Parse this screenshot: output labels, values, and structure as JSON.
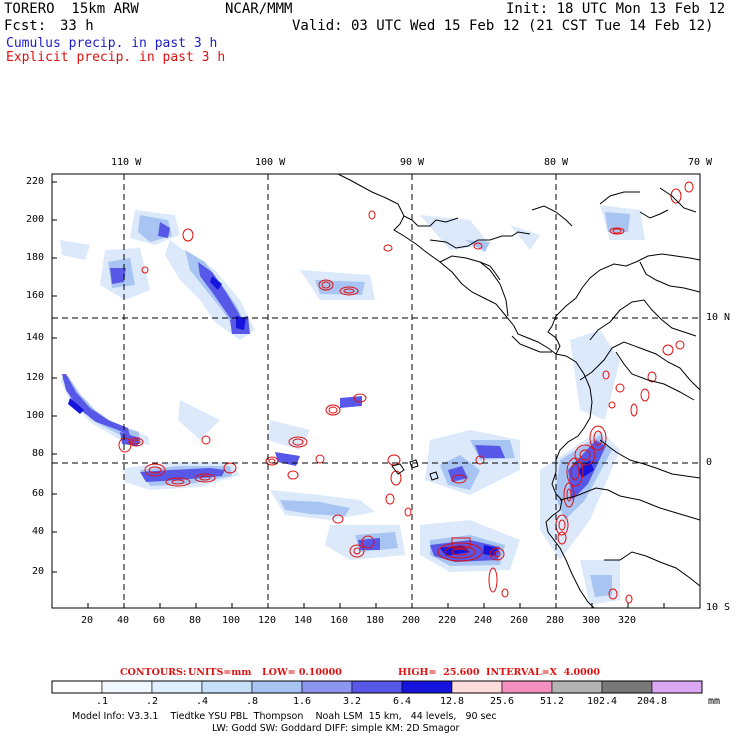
{
  "header": {
    "model": "TORERO  15km ARW",
    "org": "NCAR/MMM",
    "init": "Init: 18 UTC Mon 13 Feb 12",
    "fcst_label": "Fcst:",
    "fcst_value": "33 h",
    "valid": "Valid: 03 UTC Wed 15 Feb 12 (21 CST Tue 14 Feb 12)",
    "line_cumulus": "Cumulus precip. in past 3 h",
    "line_explicit": "Explicit precip. in past 3 h"
  },
  "colors": {
    "cumulus_text": "#1d1dc8",
    "explicit_text": "#e01010",
    "contour": "#e01010",
    "coast": "#000000"
  },
  "map": {
    "lon_labels": [
      "110 W",
      "100 W",
      "90 W",
      "80 W",
      "70 W"
    ],
    "lat_labels": [
      "10 N",
      "0",
      "10 S"
    ],
    "y_ticks": [
      "220",
      "200",
      "180",
      "160",
      "140",
      "120",
      "100",
      "80",
      "60",
      "40",
      "20"
    ],
    "x_ticks": [
      "20",
      "40",
      "60",
      "80",
      "100",
      "120",
      "140",
      "160",
      "180",
      "200",
      "220",
      "240",
      "260",
      "280",
      "300",
      "320"
    ]
  },
  "contours": {
    "label": "CONTOURS:",
    "units": "UNITS=mm",
    "low": "LOW= 0.10000",
    "high": "HIGH=  25.600",
    "interval": "INTERVAL=X  4.0000"
  },
  "colorbar": {
    "labels": [
      ".1",
      ".2",
      ".4",
      ".8",
      "1.6",
      "3.2",
      "6.4",
      "12.8",
      "25.6",
      "51.2",
      "102.4",
      "204.8"
    ],
    "unit": "mm",
    "colors": [
      "#ffffff",
      "#f0f7ff",
      "#e0efff",
      "#c6e0fa",
      "#a8c4f2",
      "#8c96ee",
      "#5858e8",
      "#1414dc",
      "#ffdcdc",
      "#f490c0",
      "#b4b4b4",
      "#787878",
      "#dca8f4"
    ]
  },
  "footer": {
    "line1": "Model Info: V3.3.1    Tiedtke YSU PBL  Thompson    Noah LSM  15 km,   44 levels,   90 sec",
    "line2": "LW: Godd SW: Goddard DIFF: simple KM: 2D Smagor"
  }
}
